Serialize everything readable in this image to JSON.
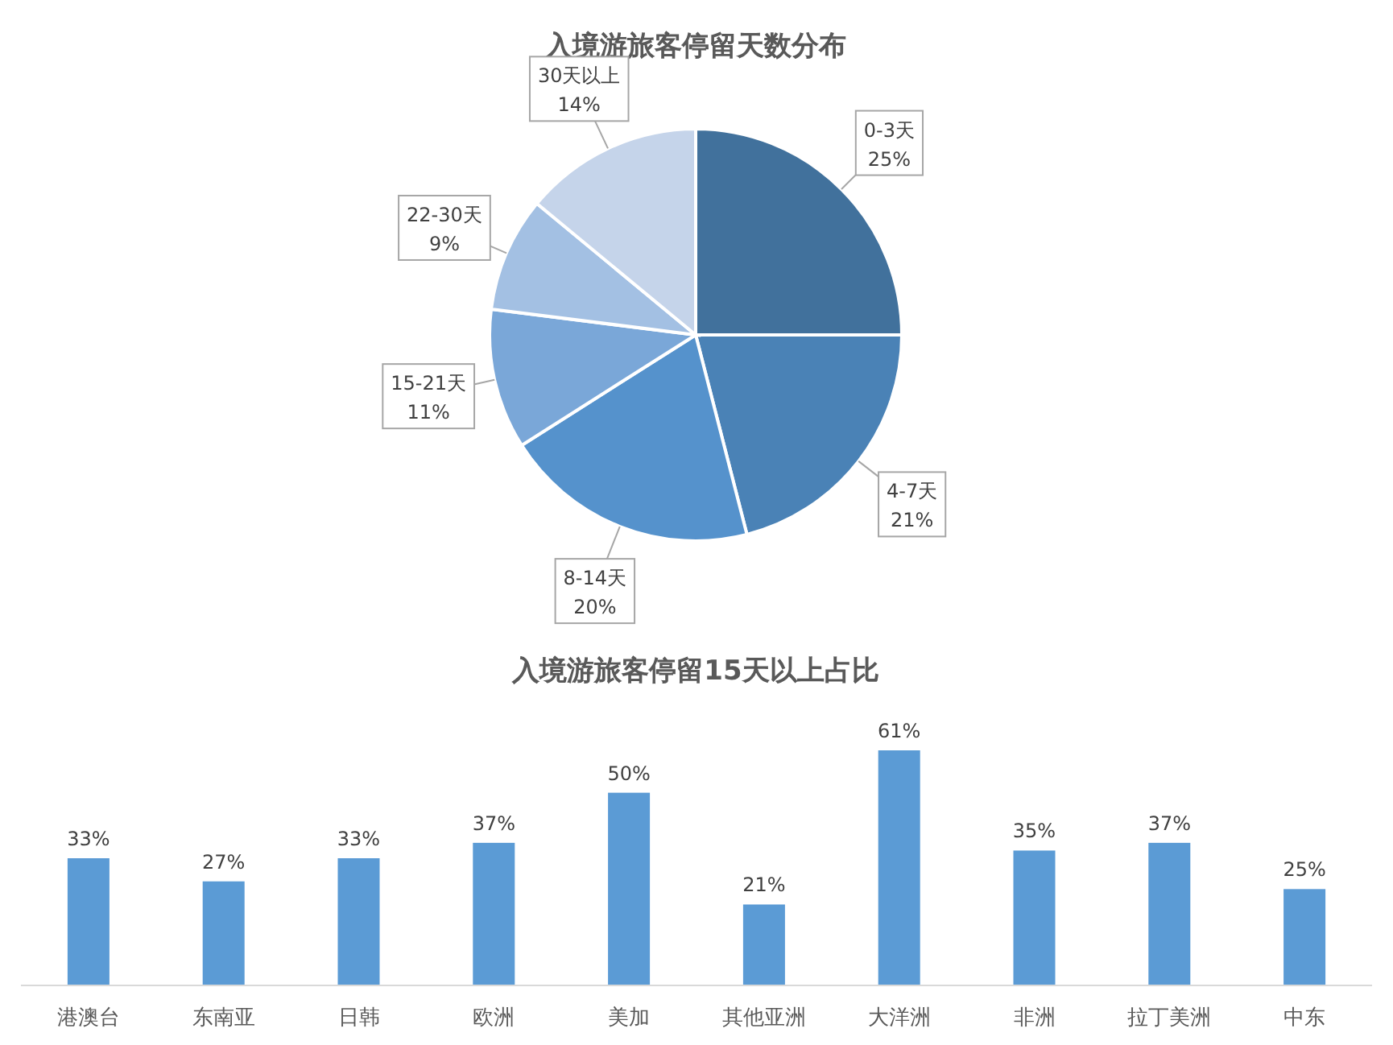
{
  "chart_data": [
    {
      "type": "pie",
      "title": "入境游旅客停留天数分布",
      "categories": [
        "0-3天",
        "4-7天",
        "8-14天",
        "15-21天",
        "22-30天",
        "30天以上"
      ],
      "values": [
        25,
        21,
        20,
        11,
        9,
        14
      ],
      "value_labels": [
        "25%",
        "21%",
        "20%",
        "11%",
        "9%",
        "14%"
      ],
      "colors": [
        "#41719c",
        "#4a82b6",
        "#5592cc",
        "#7aa7d8",
        "#a3c0e3",
        "#c5d4ea"
      ]
    },
    {
      "type": "bar",
      "title": "入境游旅客停留15天以上占比",
      "categories": [
        "港澳台",
        "东南亚",
        "日韩",
        "欧洲",
        "美加",
        "其他亚洲",
        "大洋洲",
        "非洲",
        "拉丁美洲",
        "中东"
      ],
      "values": [
        33,
        27,
        33,
        37,
        50,
        21,
        61,
        35,
        37,
        25
      ],
      "value_labels": [
        "33%",
        "27%",
        "33%",
        "37%",
        "50%",
        "21%",
        "61%",
        "35%",
        "37%",
        "25%"
      ],
      "color": "#5b9bd5"
    }
  ]
}
